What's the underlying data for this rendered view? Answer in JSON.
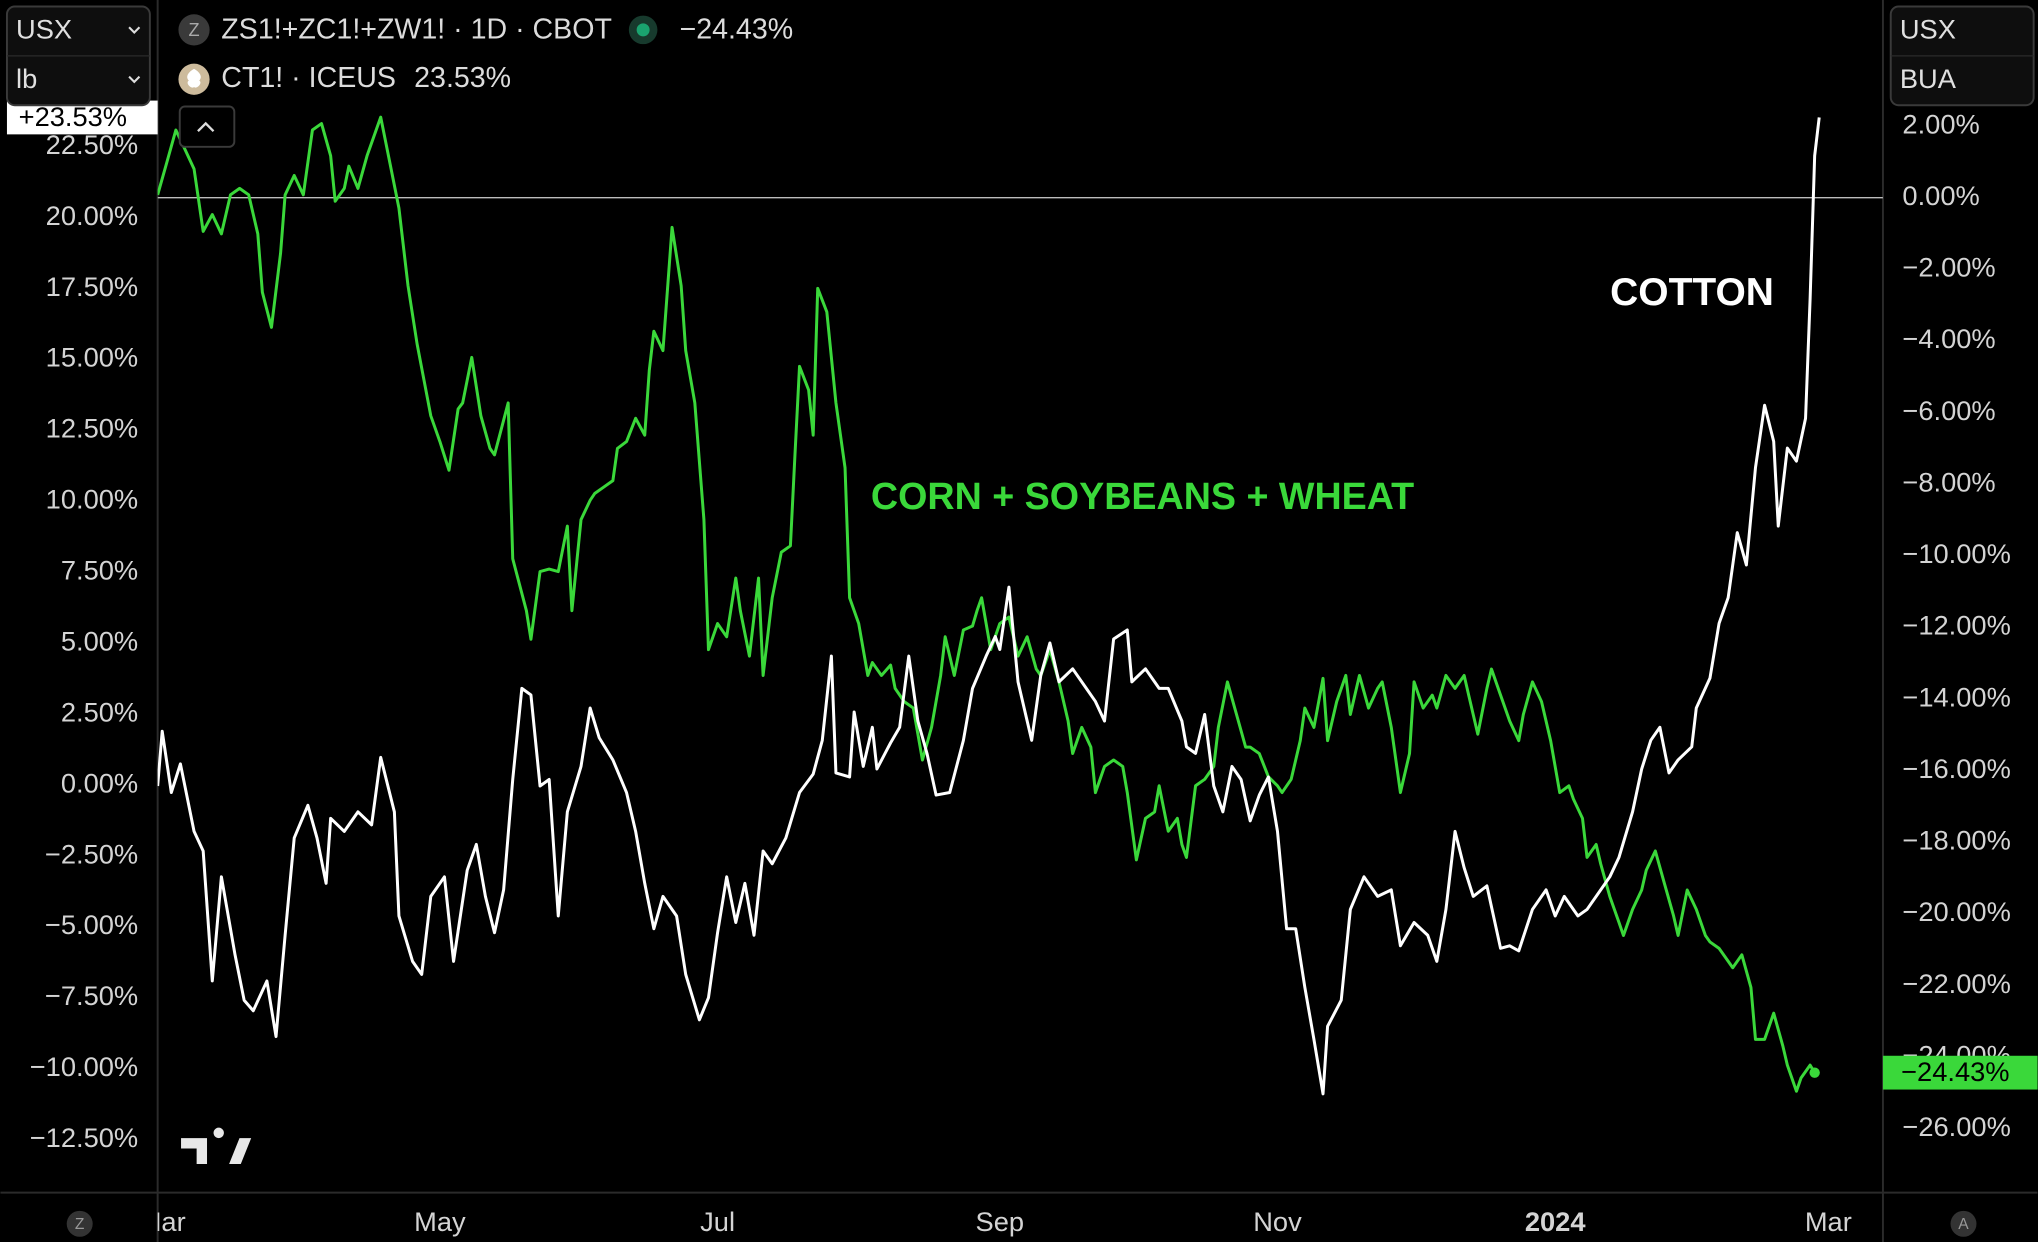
{
  "ui": {
    "left_units": [
      "USX",
      "lb"
    ],
    "right_units": [
      "USX",
      "BUA"
    ],
    "legend_icon": "Z",
    "bottom_left": "Z",
    "bottom_right": "A"
  },
  "chart_data": {
    "type": "line",
    "annotations": [
      "CORN + SOYBEANS + WHEAT",
      "COTTON"
    ],
    "xlim": [
      -1,
      378
    ],
    "xticks": [
      {
        "value": 0,
        "label": "Mar"
      },
      {
        "value": 61,
        "label": "May"
      },
      {
        "value": 122,
        "label": "Jul"
      },
      {
        "value": 184,
        "label": "Sep"
      },
      {
        "value": 245,
        "label": "Nov"
      },
      {
        "value": 306,
        "label": "2024"
      },
      {
        "value": 366,
        "label": "Mar"
      }
    ],
    "ylim": [
      -14.36,
      27.67
    ],
    "yticks": [
      {
        "value": 22.5,
        "label": "22.50%"
      },
      {
        "value": 20,
        "label": "20.00%"
      },
      {
        "value": 17.5,
        "label": "17.50%"
      },
      {
        "value": 15,
        "label": "15.00%"
      },
      {
        "value": 12.5,
        "label": "12.50%"
      },
      {
        "value": 10,
        "label": "10.00%"
      },
      {
        "value": 7.5,
        "label": "7.50%"
      },
      {
        "value": 5,
        "label": "5.00%"
      },
      {
        "value": 2.5,
        "label": "2.50%"
      },
      {
        "value": 0,
        "label": "0.00%"
      },
      {
        "value": -2.5,
        "label": "−2.50%"
      },
      {
        "value": -5,
        "label": "−5.00%"
      },
      {
        "value": -7.5,
        "label": "−7.50%"
      },
      {
        "value": -10,
        "label": "−10.00%"
      },
      {
        "value": -12.5,
        "label": "−12.50%"
      }
    ],
    "y2lim": [
      -27.78,
      5.52
    ],
    "y2ticks": [
      {
        "value": 2,
        "label": "2.00%"
      },
      {
        "value": 0,
        "label": "0.00%"
      },
      {
        "value": -2,
        "label": "−2.00%"
      },
      {
        "value": -4,
        "label": "−4.00%"
      },
      {
        "value": -6,
        "label": "−6.00%"
      },
      {
        "value": -8,
        "label": "−8.00%"
      },
      {
        "value": -10,
        "label": "−10.00%"
      },
      {
        "value": -12,
        "label": "−12.00%"
      },
      {
        "value": -14,
        "label": "−14.00%"
      },
      {
        "value": -16,
        "label": "−16.00%"
      },
      {
        "value": -18,
        "label": "−18.00%"
      },
      {
        "value": -20,
        "label": "−20.00%"
      },
      {
        "value": -22,
        "label": "−22.00%"
      },
      {
        "value": -24,
        "label": "−24.00%"
      },
      {
        "value": -26,
        "label": "−26.00%"
      }
    ],
    "zero_line": true,
    "series": [
      {
        "name": "ZS1!+ZC1!+ZW1! · 1D · CBOT",
        "legend_value": "−24.43%",
        "end_label": "−24.43%",
        "color": "#3ad83a",
        "axis": "y2",
        "end_dot": true,
        "x": [
          -1,
          1,
          3,
          5,
          7,
          9,
          11,
          13,
          15,
          17,
          19,
          21,
          22,
          24,
          26,
          27,
          29,
          31,
          33,
          35,
          37,
          38,
          40,
          41,
          43,
          45,
          47,
          48,
          50,
          52,
          54,
          56,
          59,
          61,
          63,
          65,
          66,
          68,
          70,
          72,
          73,
          76,
          77,
          80,
          81,
          83,
          85,
          87,
          89,
          90,
          92,
          94,
          95,
          97,
          99,
          100,
          102,
          104,
          106,
          107,
          108,
          110,
          112,
          114,
          115,
          117,
          119,
          120,
          122,
          124,
          126,
          127,
          129,
          131,
          132,
          134,
          136,
          138,
          139,
          140,
          142,
          143,
          144,
          146,
          148,
          150,
          151,
          153,
          155,
          156,
          158,
          160,
          161,
          163,
          165,
          167,
          169,
          171,
          172,
          174,
          176,
          178,
          179,
          180,
          182,
          184,
          186,
          188,
          190,
          192,
          193,
          195,
          197,
          199,
          200,
          202,
          204,
          205,
          207,
          209,
          211,
          212,
          214,
          216,
          218,
          219,
          221,
          223,
          224,
          225,
          227,
          229,
          231,
          232,
          234,
          236,
          238,
          239,
          241,
          243,
          245,
          246,
          248,
          250,
          251,
          253,
          255,
          256,
          258,
          260,
          261,
          263,
          265,
          267,
          268,
          270,
          272,
          274,
          275,
          277,
          279,
          280,
          282,
          284,
          286,
          287,
          289,
          291,
          292,
          294,
          296,
          298,
          299,
          301,
          303,
          305,
          307,
          309,
          310,
          312,
          313,
          315,
          316,
          318,
          320,
          321,
          323,
          325,
          326,
          328,
          330,
          332,
          333,
          335,
          337,
          339,
          340,
          342,
          344,
          345,
          347,
          349,
          350,
          352,
          354,
          356,
          357,
          359,
          360,
          362,
          363
        ],
        "values": [
          0.08,
          0.98,
          1.89,
          1.35,
          0.8,
          -0.94,
          -0.47,
          -1.01,
          0.08,
          0.26,
          0.08,
          -1.01,
          -2.64,
          -3.62,
          -1.55,
          0.08,
          0.62,
          0.08,
          1.89,
          2.07,
          1.17,
          -0.1,
          0.26,
          0.88,
          0.26,
          1.17,
          1.89,
          2.25,
          0.98,
          -0.29,
          -2.46,
          -4.09,
          -6.09,
          -6.81,
          -7.61,
          -5.9,
          -5.73,
          -4.46,
          -6.09,
          -7.0,
          -7.18,
          -5.73,
          -10.08,
          -11.53,
          -12.33,
          -10.44,
          -10.37,
          -10.44,
          -9.17,
          -11.53,
          -8.99,
          -8.45,
          -8.26,
          -8.08,
          -7.9,
          -7.0,
          -6.81,
          -6.16,
          -6.63,
          -4.82,
          -3.73,
          -4.27,
          -0.83,
          -2.46,
          -4.27,
          -5.73,
          -8.99,
          -12.62,
          -11.89,
          -12.26,
          -10.62,
          -11.53,
          -12.8,
          -10.62,
          -13.34,
          -11.17,
          -9.9,
          -9.72,
          -7.18,
          -4.71,
          -5.37,
          -6.63,
          -2.53,
          -3.19,
          -5.73,
          -7.54,
          -11.17,
          -11.89,
          -13.34,
          -12.98,
          -13.34,
          -13.05,
          -13.7,
          -14.07,
          -14.25,
          -15.7,
          -14.79,
          -13.34,
          -12.26,
          -13.34,
          -12.07,
          -11.96,
          -11.53,
          -11.17,
          -12.62,
          -11.89,
          -11.71,
          -12.8,
          -12.26,
          -13.16,
          -13.34,
          -12.62,
          -13.52,
          -14.61,
          -15.52,
          -14.79,
          -15.34,
          -16.61,
          -15.88,
          -15.7,
          -15.88,
          -16.61,
          -18.49,
          -17.33,
          -17.15,
          -16.42,
          -17.69,
          -17.33,
          -18.06,
          -18.42,
          -16.42,
          -16.24,
          -15.88,
          -14.79,
          -13.52,
          -14.43,
          -15.34,
          -15.34,
          -15.52,
          -16.17,
          -16.42,
          -16.61,
          -16.24,
          -15.16,
          -14.25,
          -14.79,
          -13.42,
          -15.16,
          -14.07,
          -13.34,
          -14.43,
          -13.34,
          -14.25,
          -13.7,
          -13.52,
          -14.79,
          -16.61,
          -15.52,
          -13.52,
          -14.25,
          -13.89,
          -14.25,
          -13.34,
          -13.7,
          -13.34,
          -13.89,
          -14.98,
          -13.7,
          -13.16,
          -13.89,
          -14.61,
          -15.16,
          -14.43,
          -13.52,
          -14.07,
          -15.16,
          -16.61,
          -16.42,
          -16.79,
          -17.33,
          -18.42,
          -18.06,
          -18.6,
          -19.51,
          -20.23,
          -20.6,
          -19.87,
          -19.33,
          -18.78,
          -18.24,
          -19.15,
          -20.05,
          -20.6,
          -19.33,
          -19.87,
          -20.6,
          -20.78,
          -20.96,
          -21.32,
          -21.5,
          -21.14,
          -22.05,
          -23.5,
          -23.5,
          -22.77,
          -23.68,
          -24.22,
          -24.95,
          -24.58,
          -24.22,
          -24.43
        ]
      },
      {
        "name": "CT1! · ICEUS",
        "legend_value": "23.53%",
        "end_label": "+23.53%",
        "color": "#ffffff",
        "axis": "y",
        "end_dot": false,
        "x": [
          -1,
          0,
          2,
          4,
          7,
          9,
          11,
          13,
          16,
          18,
          20,
          23,
          25,
          27,
          29,
          32,
          34,
          36,
          37,
          40,
          43,
          46,
          48,
          51,
          52,
          55,
          57,
          59,
          62,
          64,
          67,
          69,
          71,
          73,
          75,
          77,
          79,
          81,
          83,
          85,
          87,
          89,
          92,
          94,
          96,
          99,
          102,
          104,
          106,
          108,
          110,
          113,
          115,
          118,
          120,
          122,
          124,
          126,
          128,
          130,
          132,
          134,
          137,
          140,
          143,
          145,
          147,
          148,
          151,
          152,
          154,
          156,
          157,
          160,
          162,
          164,
          166,
          168,
          170,
          173,
          176,
          178,
          181,
          183,
          184,
          186,
          188,
          191,
          193,
          195,
          197,
          200,
          203,
          205,
          207,
          209,
          212,
          213,
          216,
          219,
          221,
          224,
          225,
          227,
          229,
          231,
          233,
          235,
          237,
          239,
          241,
          243,
          245,
          247,
          249,
          251,
          253,
          255,
          256,
          259,
          261,
          264,
          267,
          270,
          272,
          275,
          278,
          280,
          282,
          284,
          286,
          288,
          291,
          294,
          296,
          298,
          301,
          304,
          306,
          308,
          311,
          313,
          316,
          318,
          320,
          323,
          325,
          327,
          329,
          331,
          333,
          336,
          337,
          340,
          342,
          344,
          346,
          348,
          350,
          352,
          354,
          355,
          357,
          359,
          361,
          362,
          363,
          364
        ],
        "values": [
          -0.03,
          1.9,
          -0.26,
          0.75,
          -1.63,
          -2.32,
          -6.9,
          -3.23,
          -5.98,
          -7.58,
          -7.95,
          -6.9,
          -8.86,
          -5.29,
          -1.86,
          -0.71,
          -1.86,
          -3.46,
          -1.17,
          -1.63,
          -0.94,
          -1.4,
          0.98,
          -0.94,
          -4.61,
          -6.21,
          -6.67,
          -3.92,
          -3.23,
          -6.21,
          -3.0,
          -2.09,
          -3.92,
          -5.2,
          -3.69,
          0.2,
          3.41,
          3.18,
          -0.03,
          0.2,
          -4.61,
          -0.94,
          0.66,
          2.72,
          1.67,
          0.89,
          -0.26,
          -1.63,
          -3.46,
          -5.06,
          -3.92,
          -4.61,
          -6.67,
          -8.27,
          -7.49,
          -5.2,
          -3.23,
          -4.84,
          -3.46,
          -5.29,
          -2.32,
          -2.77,
          -1.86,
          -0.26,
          0.39,
          1.58,
          4.55,
          0.43,
          0.29,
          2.58,
          0.66,
          2.04,
          0.57,
          1.49,
          2.04,
          4.55,
          2.26,
          1.12,
          -0.35,
          -0.26,
          1.58,
          3.41,
          4.55,
          5.24,
          4.78,
          6.98,
          3.64,
          1.58,
          3.87,
          5.01,
          3.64,
          4.1,
          3.41,
          2.95,
          2.26,
          5.15,
          5.47,
          3.64,
          4.1,
          3.41,
          3.41,
          2.26,
          1.35,
          1.12,
          2.49,
          -0.03,
          -0.94,
          0.66,
          0.2,
          -1.26,
          -0.35,
          0.29,
          -1.63,
          -5.06,
          -5.06,
          -7.12,
          -8.96,
          -10.88,
          -8.5,
          -7.58,
          -4.38,
          -3.23,
          -3.92,
          -3.69,
          -5.66,
          -4.84,
          -5.29,
          -6.21,
          -4.38,
          -1.63,
          -2.91,
          -3.92,
          -3.55,
          -5.75,
          -5.66,
          -5.84,
          -4.38,
          -3.69,
          -4.61,
          -3.92,
          -4.61,
          -4.38,
          -3.69,
          -3.23,
          -2.55,
          -0.94,
          0.57,
          1.58,
          2.04,
          0.43,
          0.89,
          1.35,
          2.72,
          3.77,
          5.7,
          6.61,
          8.9,
          7.76,
          11.19,
          13.39,
          12.11,
          9.13,
          11.88,
          11.42,
          12.93,
          17.14,
          22.18,
          23.53
        ]
      }
    ]
  }
}
